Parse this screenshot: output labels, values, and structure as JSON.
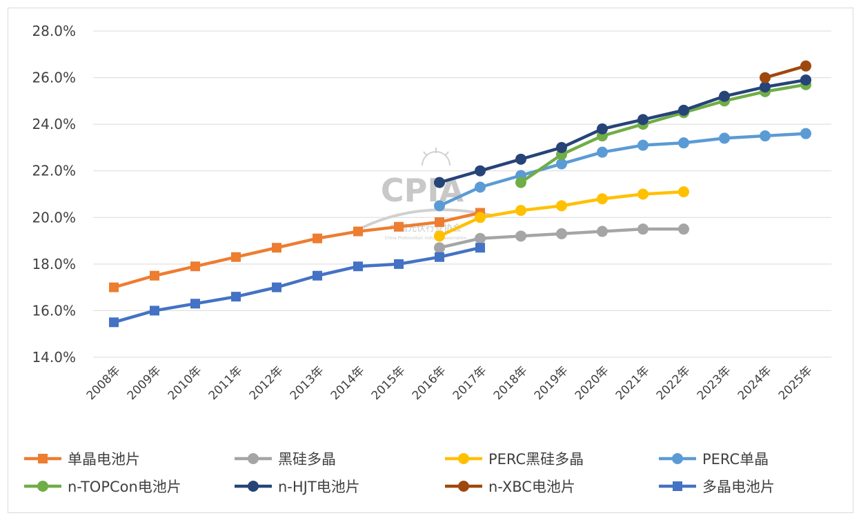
{
  "chart_data": {
    "type": "line",
    "title": "",
    "xlabel": "",
    "ylabel": "",
    "categories": [
      "2008年",
      "2009年",
      "2010年",
      "2011年",
      "2012年",
      "2013年",
      "2014年",
      "2015年",
      "2016年",
      "2017年",
      "2018年",
      "2019年",
      "2020年",
      "2021年",
      "2022年",
      "2023年",
      "2024年",
      "2025年"
    ],
    "ylim": [
      14.0,
      28.0
    ],
    "yticks": [
      "14.0%",
      "16.0%",
      "18.0%",
      "20.0%",
      "22.0%",
      "24.0%",
      "26.0%",
      "28.0%"
    ],
    "grid": true,
    "legend_position": "bottom",
    "series": [
      {
        "name": "单晶电池片",
        "color": "#ed7d31",
        "marker": "square",
        "values": [
          17.0,
          17.5,
          17.9,
          18.3,
          18.7,
          19.1,
          19.4,
          19.6,
          19.8,
          20.2,
          null,
          null,
          null,
          null,
          null,
          null,
          null,
          null
        ]
      },
      {
        "name": "黑硅多晶",
        "color": "#a5a5a5",
        "marker": "circle",
        "values": [
          null,
          null,
          null,
          null,
          null,
          null,
          null,
          null,
          18.7,
          19.1,
          19.2,
          19.3,
          19.4,
          19.5,
          19.5,
          null,
          null,
          null
        ]
      },
      {
        "name": "PERC黑硅多晶",
        "color": "#ffc000",
        "marker": "circle",
        "values": [
          null,
          null,
          null,
          null,
          null,
          null,
          null,
          null,
          19.2,
          20.0,
          20.3,
          20.5,
          20.8,
          21.0,
          21.1,
          null,
          null,
          null
        ]
      },
      {
        "name": "PERC单晶",
        "color": "#5b9bd5",
        "marker": "circle",
        "values": [
          null,
          null,
          null,
          null,
          null,
          null,
          null,
          null,
          20.5,
          21.3,
          21.8,
          22.3,
          22.8,
          23.1,
          23.2,
          23.4,
          23.5,
          23.6
        ]
      },
      {
        "name": "n-TOPCon电池片",
        "color": "#70ad47",
        "marker": "circle",
        "values": [
          null,
          null,
          null,
          null,
          null,
          null,
          null,
          null,
          null,
          null,
          21.5,
          22.7,
          23.5,
          24.0,
          24.5,
          25.0,
          25.4,
          25.7
        ]
      },
      {
        "name": "n-HJT电池片",
        "color": "#264478",
        "marker": "circle",
        "values": [
          null,
          null,
          null,
          null,
          null,
          null,
          null,
          null,
          21.5,
          22.0,
          22.5,
          23.0,
          23.8,
          24.2,
          24.6,
          25.2,
          25.6,
          25.9
        ]
      },
      {
        "name": "n-XBC电池片",
        "color": "#9e480e",
        "marker": "circle",
        "values": [
          null,
          null,
          null,
          null,
          null,
          null,
          null,
          null,
          null,
          null,
          null,
          null,
          null,
          null,
          null,
          null,
          26.0,
          26.5
        ]
      },
      {
        "name": "多晶电池片",
        "color": "#4472c4",
        "marker": "square",
        "values": [
          15.5,
          16.0,
          16.3,
          16.6,
          17.0,
          17.5,
          17.9,
          18.0,
          18.3,
          18.7,
          null,
          null,
          null,
          null,
          null,
          null,
          null,
          null
        ]
      }
    ]
  },
  "watermark": {
    "logo_text": "CPIA",
    "cn_text": "中国光伏行业协会",
    "en_text": "China Photovoltaic Industry Association"
  }
}
